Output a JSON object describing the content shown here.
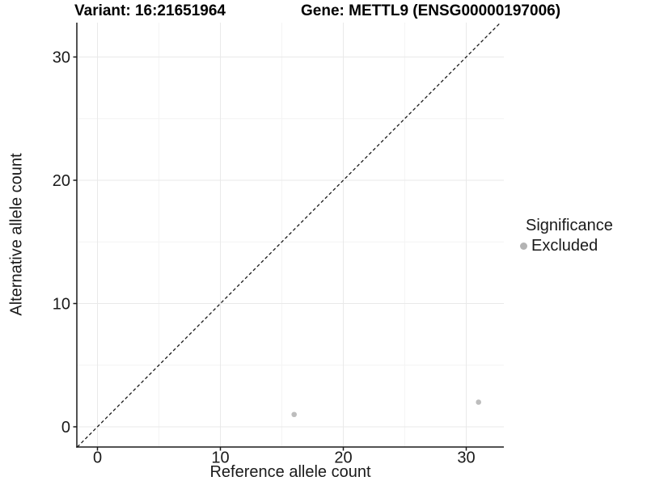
{
  "chart_data": {
    "type": "scatter",
    "title_left": "Variant: 16:21651964",
    "title_right": "Gene: METTL9 (ENSG00000197006)",
    "xlabel": "Reference allele count",
    "ylabel": "Alternative allele count",
    "x_ticks": [
      0,
      10,
      20,
      30
    ],
    "y_ticks": [
      0,
      10,
      20,
      30
    ],
    "x_minor_ticks": [
      5,
      15,
      25
    ],
    "y_minor_ticks": [
      5,
      15,
      25
    ],
    "xlim": [
      -1.68,
      32.95
    ],
    "ylim": [
      -1.64,
      32.79
    ],
    "grid": true,
    "legend_position": "right",
    "points": [
      {
        "x": 16,
        "y": 1,
        "series": "Excluded"
      },
      {
        "x": 31,
        "y": 2,
        "series": "Excluded"
      }
    ],
    "point_color": "#bdbdbd",
    "reference_line": {
      "type": "identity",
      "slope": 1,
      "intercept": 0,
      "style": "dashed",
      "color": "#1a1a1a"
    }
  },
  "legend": {
    "title": "Significance",
    "items": [
      {
        "label": "Excluded",
        "color": "#b3b3b3"
      }
    ]
  },
  "colors": {
    "background": "#ffffff",
    "grid_major": "#e9e9e9",
    "grid_minor": "#f4f4f4",
    "axis_line": "#1a1a1a",
    "tick_label": "#1a1a1a"
  }
}
